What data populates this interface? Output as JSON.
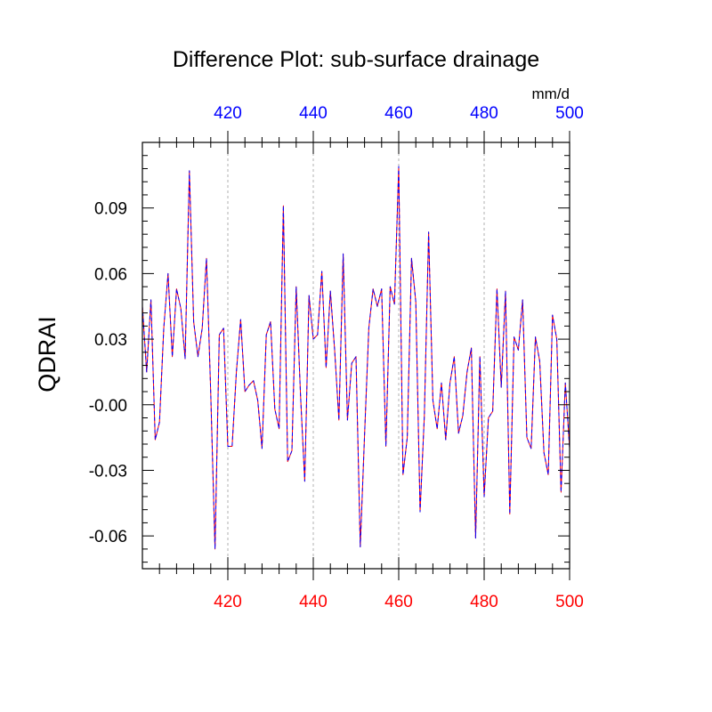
{
  "chart_data": {
    "type": "line",
    "title": "Difference Plot: sub-surface drainage",
    "units": "mm/d",
    "ylabel": "QDRAI",
    "xlabel": "",
    "xlim": [
      400,
      500
    ],
    "ylim": [
      -0.075,
      0.12
    ],
    "x_ticks": [
      420,
      440,
      460,
      480,
      500
    ],
    "y_ticks": [
      -0.06,
      -0.03,
      0.0,
      0.03,
      0.06,
      0.09
    ],
    "y_tick_labels": [
      "-0.06",
      "-0.03",
      "-0.00",
      "0.03",
      "0.06",
      "0.09"
    ],
    "grid": "x-dashed",
    "colors": {
      "bottom_axis": "#ff0000",
      "top_axis": "#0000ff",
      "series_a": "#ff0000",
      "series_b": "#0000ff"
    },
    "x": [
      400,
      401,
      402,
      403,
      404,
      405,
      406,
      407,
      408,
      409,
      410,
      411,
      412,
      413,
      414,
      415,
      416,
      417,
      418,
      419,
      420,
      421,
      422,
      423,
      424,
      425,
      426,
      427,
      428,
      429,
      430,
      431,
      432,
      433,
      434,
      435,
      436,
      437,
      438,
      439,
      440,
      441,
      442,
      443,
      444,
      445,
      446,
      447,
      448,
      449,
      450,
      451,
      452,
      453,
      454,
      455,
      456,
      457,
      458,
      459,
      460,
      461,
      462,
      463,
      464,
      465,
      466,
      467,
      468,
      469,
      470,
      471,
      472,
      473,
      474,
      475,
      476,
      477,
      478,
      479,
      480,
      481,
      482,
      483,
      484,
      485,
      486,
      487,
      488,
      489,
      490,
      491,
      492,
      493,
      494,
      495,
      496,
      497,
      498,
      499,
      500
    ],
    "series": [
      {
        "values": [
          0.045,
          0.015,
          0.048,
          -0.016,
          -0.008,
          0.035,
          0.06,
          0.022,
          0.053,
          0.044,
          0.021,
          0.107,
          0.038,
          0.022,
          0.035,
          0.067,
          0.005,
          -0.066,
          0.032,
          0.035,
          -0.019,
          -0.019,
          0.015,
          0.039,
          0.006,
          0.009,
          0.011,
          0.002,
          -0.02,
          0.032,
          0.038,
          -0.002,
          -0.011,
          0.091,
          -0.026,
          -0.021,
          0.054,
          0.005,
          -0.035,
          0.05,
          0.03,
          0.032,
          0.061,
          0.017,
          0.052,
          0.025,
          -0.007,
          0.069,
          -0.007,
          0.019,
          0.022,
          -0.065,
          -0.014,
          0.035,
          0.053,
          0.045,
          0.053,
          -0.019,
          0.054,
          0.046,
          0.109,
          -0.032,
          -0.015,
          0.067,
          0.047,
          -0.049,
          -0.005,
          0.079,
          0.002,
          -0.011,
          0.01,
          -0.016,
          0.01,
          0.022,
          -0.013,
          -0.005,
          0.015,
          0.026,
          -0.061,
          0.022,
          -0.042,
          -0.006,
          -0.003,
          0.053,
          0.008,
          0.052,
          -0.05,
          0.031,
          0.025,
          0.048,
          -0.015,
          -0.02,
          0.031,
          0.02,
          -0.022,
          -0.032,
          0.041,
          0.03,
          -0.04,
          0.01,
          -0.02
        ]
      },
      {
        "values": [
          0.045,
          0.015,
          0.048,
          -0.016,
          -0.008,
          0.035,
          0.06,
          0.022,
          0.053,
          0.044,
          0.021,
          0.107,
          0.038,
          0.022,
          0.035,
          0.067,
          0.005,
          -0.066,
          0.032,
          0.035,
          -0.019,
          -0.019,
          0.015,
          0.039,
          0.006,
          0.009,
          0.011,
          0.002,
          -0.02,
          0.032,
          0.038,
          -0.002,
          -0.011,
          0.091,
          -0.026,
          -0.021,
          0.054,
          0.005,
          -0.035,
          0.05,
          0.03,
          0.032,
          0.061,
          0.017,
          0.052,
          0.025,
          -0.007,
          0.069,
          -0.007,
          0.019,
          0.022,
          -0.065,
          -0.014,
          0.035,
          0.053,
          0.045,
          0.053,
          -0.019,
          0.054,
          0.046,
          0.109,
          -0.032,
          -0.015,
          0.067,
          0.047,
          -0.049,
          -0.005,
          0.079,
          0.002,
          -0.011,
          0.01,
          -0.016,
          0.01,
          0.022,
          -0.013,
          -0.005,
          0.015,
          0.026,
          -0.061,
          0.022,
          -0.042,
          -0.006,
          -0.003,
          0.053,
          0.008,
          0.052,
          -0.05,
          0.031,
          0.025,
          0.048,
          -0.015,
          -0.02,
          0.031,
          0.02,
          -0.022,
          -0.032,
          0.041,
          0.03,
          -0.04,
          0.01,
          -0.02
        ]
      }
    ]
  }
}
